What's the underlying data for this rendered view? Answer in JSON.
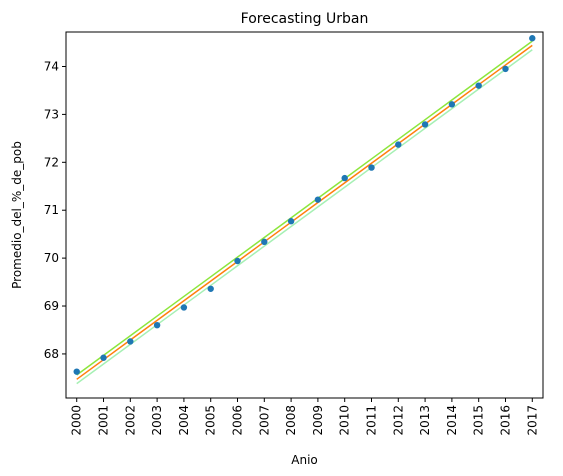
{
  "chart_data": {
    "type": "scatter",
    "title": "Forecasting Urban",
    "xlabel": "Anio",
    "ylabel": "Promedio_del_%_de_pob",
    "x": [
      2000,
      2001,
      2002,
      2003,
      2004,
      2005,
      2006,
      2007,
      2008,
      2009,
      2010,
      2011,
      2012,
      2013,
      2014,
      2015,
      2016,
      2017
    ],
    "x_tick_labels": [
      "2000",
      "2001",
      "2002",
      "2003",
      "2004",
      "2005",
      "2006",
      "2007",
      "2008",
      "2009",
      "2010",
      "2011",
      "2012",
      "2013",
      "2014",
      "2015",
      "2016",
      "2017"
    ],
    "y_ticks": [
      68,
      69,
      70,
      71,
      72,
      73,
      74
    ],
    "y_tick_labels": [
      "68",
      "69",
      "70",
      "71",
      "72",
      "73",
      "74"
    ],
    "xlim": [
      1999.6,
      2017.4
    ],
    "ylim": [
      67.08,
      74.72
    ],
    "grid": false,
    "series": [
      {
        "kind": "scatter",
        "color": "#1f77b4",
        "values": [
          67.63,
          67.92,
          68.26,
          68.6,
          68.97,
          69.36,
          69.94,
          70.34,
          70.77,
          71.22,
          71.67,
          71.89,
          72.37,
          72.79,
          73.21,
          73.6,
          73.95,
          74.59
        ]
      },
      {
        "kind": "line",
        "color": "#ff7f0e",
        "values": [
          67.47,
          67.88,
          68.29,
          68.7,
          69.11,
          69.52,
          69.93,
          70.34,
          70.75,
          71.16,
          71.57,
          71.98,
          72.39,
          72.8,
          73.21,
          73.62,
          74.03,
          74.44
        ]
      },
      {
        "kind": "line",
        "color": "#8ce63c",
        "values": [
          67.56,
          67.97,
          68.38,
          68.79,
          69.2,
          69.61,
          70.02,
          70.43,
          70.84,
          71.25,
          71.66,
          72.07,
          72.48,
          72.89,
          73.3,
          73.71,
          74.12,
          74.53
        ]
      },
      {
        "kind": "line",
        "color": "#a6f0b4",
        "values": [
          67.38,
          67.79,
          68.2,
          68.61,
          69.02,
          69.43,
          69.84,
          70.25,
          70.66,
          71.07,
          71.48,
          71.89,
          72.3,
          72.71,
          73.12,
          73.53,
          73.94,
          74.35
        ]
      }
    ]
  }
}
